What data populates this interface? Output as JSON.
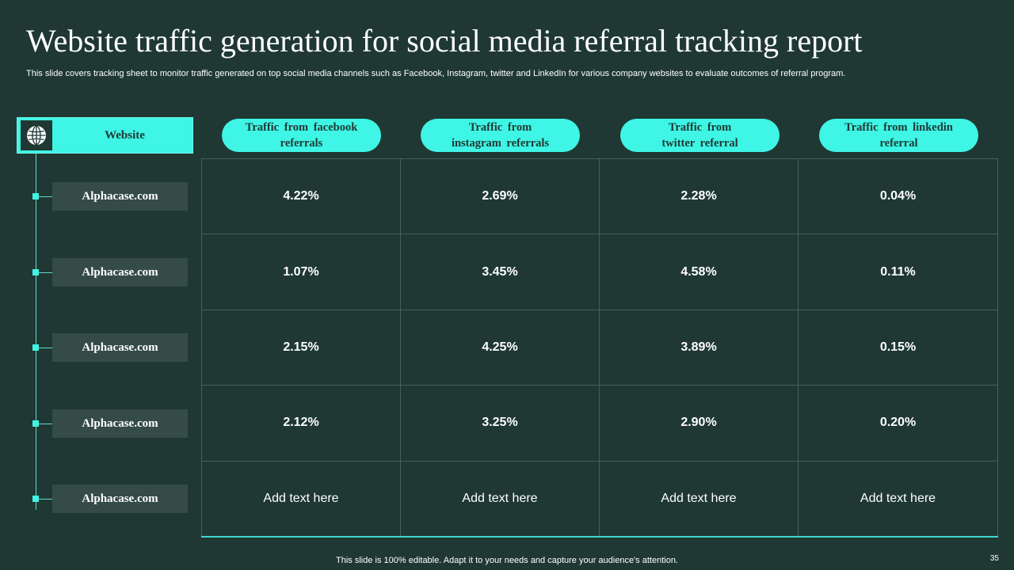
{
  "title": "Website traffic generation for social media referral tracking report",
  "subtitle": "This slide covers tracking sheet to monitor traffic generated on top social media channels such as Facebook, Instagram, twitter and LinkedIn for various company websites to evaluate outcomes of referral program.",
  "website_header": {
    "label": "Website",
    "icon": "globe-icon"
  },
  "columns": [
    "Traffic from facebook\nreferrals",
    "Traffic from\ninstagram referrals",
    "Traffic from\ntwitter referral",
    "Traffic from linkedin\nreferral"
  ],
  "rows": [
    {
      "website": "Alphacase.com",
      "values": [
        "4.22%",
        "2.69%",
        "2.28%",
        "0.04%"
      ]
    },
    {
      "website": "Alphacase.com",
      "values": [
        "1.07%",
        "3.45%",
        "4.58%",
        "0.11%"
      ]
    },
    {
      "website": "Alphacase.com",
      "values": [
        "2.15%",
        "4.25%",
        "3.89%",
        "0.15%"
      ]
    },
    {
      "website": "Alphacase.com",
      "values": [
        "2.12%",
        "3.25%",
        "2.90%",
        "0.20%"
      ]
    },
    {
      "website": "Alphacase.com",
      "values": [
        "Add text here",
        "Add text here",
        "Add text here",
        "Add text here"
      ]
    }
  ],
  "footer": "This slide is 100% editable. Adapt it to your needs and capture your audience's attention.",
  "page_number": "35",
  "colors": {
    "background": "#1f3833",
    "accent": "#3ff5e5",
    "row_label_bg": "#344b47"
  }
}
